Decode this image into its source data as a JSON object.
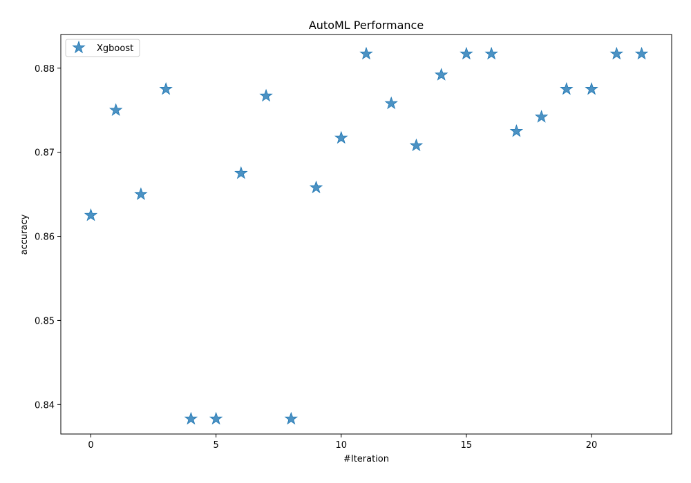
{
  "chart_data": {
    "type": "scatter",
    "title": "AutoML Performance",
    "xlabel": "#Iteration",
    "ylabel": "accuracy",
    "xlim": [
      -1.2,
      23.2
    ],
    "ylim": [
      0.8365,
      0.884
    ],
    "xticks": [
      0,
      5,
      10,
      15,
      20
    ],
    "yticks": [
      0.84,
      0.85,
      0.86,
      0.87,
      0.88
    ],
    "ytick_labels": [
      "0.84",
      "0.85",
      "0.86",
      "0.87",
      "0.88"
    ],
    "grid": false,
    "legend_position": "top-left",
    "marker": "star",
    "series": [
      {
        "name": "Xgboost",
        "color": "#1f77b4",
        "x": [
          0,
          1,
          2,
          3,
          4,
          5,
          6,
          7,
          8,
          9,
          10,
          11,
          12,
          13,
          14,
          15,
          16,
          17,
          18,
          19,
          20,
          21,
          22
        ],
        "y": [
          0.8625,
          0.875,
          0.865,
          0.8775,
          0.8383,
          0.8383,
          0.8675,
          0.8767,
          0.8383,
          0.8658,
          0.8717,
          0.8817,
          0.8758,
          0.8708,
          0.8792,
          0.8817,
          0.8817,
          0.8725,
          0.8742,
          0.8775,
          0.8775,
          0.8817,
          0.8817
        ]
      }
    ]
  }
}
